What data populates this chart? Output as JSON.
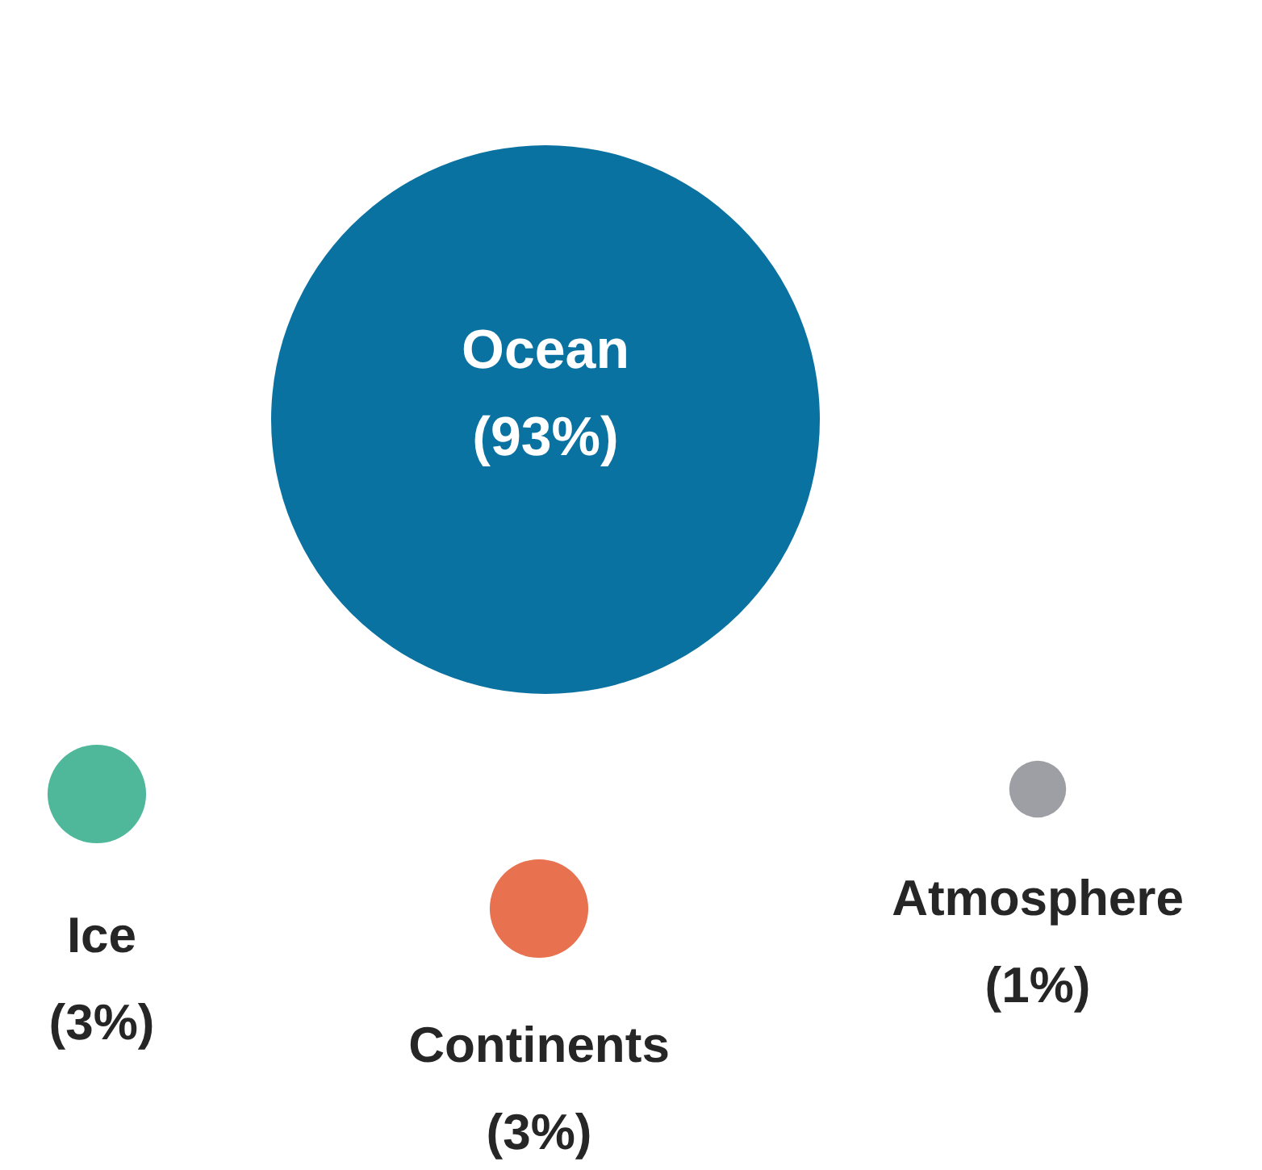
{
  "chart_data": {
    "type": "other",
    "categories": [
      "Ocean",
      "Ice",
      "Continents",
      "Atmosphere"
    ],
    "values": [
      93,
      3,
      3,
      1
    ],
    "colors": [
      "#0a72a0",
      "#4fb79a",
      "#e8714f",
      "#9e9fa4"
    ],
    "value_labels": [
      "(93%)",
      "(3%)",
      "(3%)",
      "(1%)"
    ]
  }
}
